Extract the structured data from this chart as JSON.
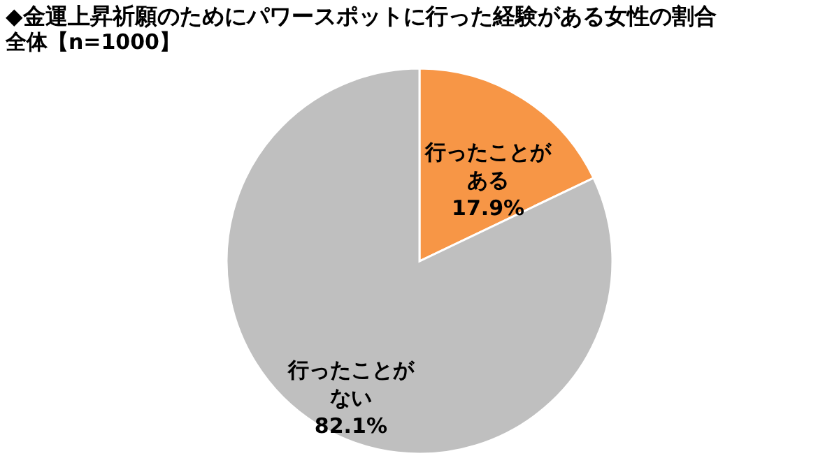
{
  "chart_data": {
    "type": "pie",
    "title": "◆金運上昇祈願のためにパワースポットに行った経験がある女性の割合",
    "subtitle": "全体【n=1000】",
    "categories": [
      "行ったことがある",
      "行ったことがない"
    ],
    "values": [
      17.9,
      82.1
    ],
    "value_labels": [
      "17.9%",
      "82.1%"
    ],
    "colors": [
      "#f79646",
      "#bfbfbf"
    ]
  }
}
